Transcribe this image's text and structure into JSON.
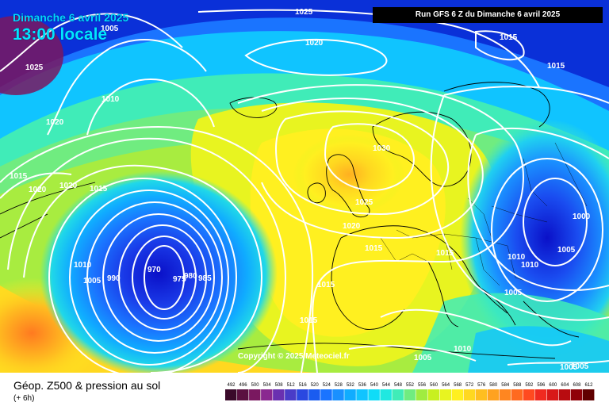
{
  "header": {
    "date": "Dimanche 6 avril 2025",
    "time": "13:00 locale",
    "run": "Run GFS 6 Z du Dimanche 6 avril 2025"
  },
  "copyright": "Copyright © 2025 Meteociel.fr",
  "legend": {
    "title": "Géop. Z500 & pression au sol",
    "subtitle": "(+ 6h)",
    "ticks": [
      "492",
      "496",
      "500",
      "504",
      "508",
      "512",
      "516",
      "520",
      "524",
      "528",
      "532",
      "536",
      "540",
      "544",
      "548",
      "552",
      "556",
      "560",
      "564",
      "568",
      "572",
      "576",
      "580",
      "584",
      "588",
      "592",
      "596",
      "600",
      "604",
      "608",
      "612"
    ],
    "colors": [
      "#3a0a2a",
      "#5a1040",
      "#7a1860",
      "#8a2890",
      "#6a30b0",
      "#4a3cc8",
      "#2a48e0",
      "#1a5cf0",
      "#1a74ff",
      "#1a90ff",
      "#10acff",
      "#10c4ff",
      "#10dcf8",
      "#20e8e0",
      "#40ecb8",
      "#70ec80",
      "#a0ec40",
      "#c8f020",
      "#e8f420",
      "#fff020",
      "#ffd820",
      "#ffbe20",
      "#ffa220",
      "#ff8620",
      "#ff6a20",
      "#ff4a20",
      "#f02a20",
      "#d81818",
      "#b80c10",
      "#900008",
      "#600000"
    ]
  },
  "isobars": [
    {
      "label": "1025"
    },
    {
      "label": "1005"
    },
    {
      "label": "1020"
    },
    {
      "label": "1015"
    },
    {
      "label": "1025"
    },
    {
      "label": "1015"
    },
    {
      "label": "1010"
    },
    {
      "label": "1020"
    },
    {
      "label": "1030"
    },
    {
      "label": "1015"
    },
    {
      "label": "1020"
    },
    {
      "label": "1020"
    },
    {
      "label": "1015"
    },
    {
      "label": "1025"
    },
    {
      "label": "1020"
    },
    {
      "label": "1000"
    },
    {
      "label": "1010"
    },
    {
      "label": "1015"
    },
    {
      "label": "1015"
    },
    {
      "label": "1005"
    },
    {
      "label": "1010"
    },
    {
      "label": "1010"
    },
    {
      "label": "1005"
    },
    {
      "label": "1005"
    },
    {
      "label": "990"
    },
    {
      "label": "970"
    },
    {
      "label": "975"
    },
    {
      "label": "980"
    },
    {
      "label": "985"
    },
    {
      "label": "1015"
    },
    {
      "label": "1015"
    },
    {
      "label": "1005"
    },
    {
      "label": "1010"
    },
    {
      "label": "1005"
    },
    {
      "label": "1005"
    }
  ]
}
